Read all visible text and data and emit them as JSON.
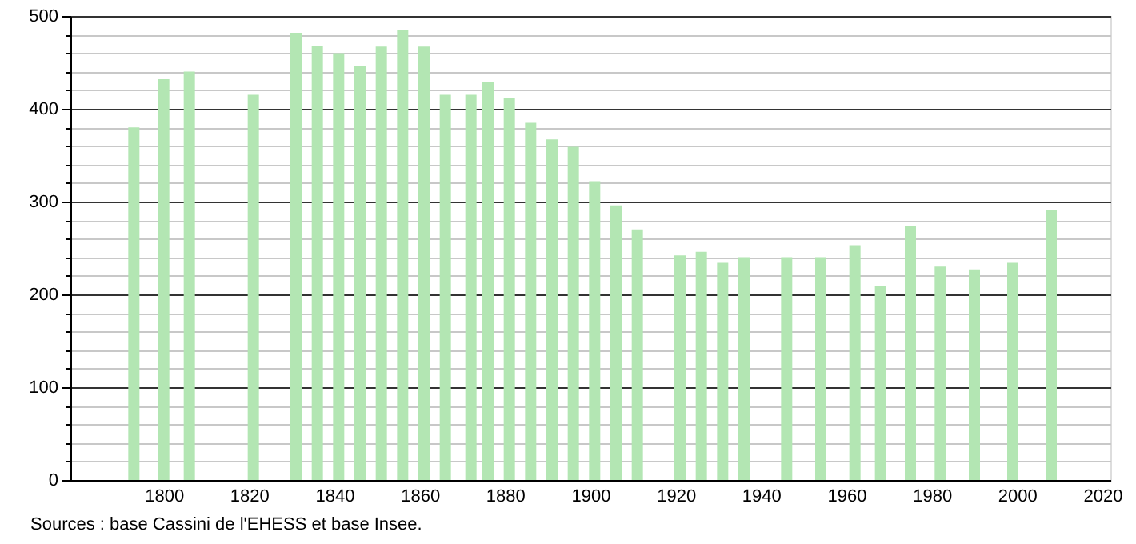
{
  "chart_data": {
    "type": "bar",
    "x": [
      1793,
      1800,
      1806,
      1821,
      1831,
      1836,
      1841,
      1846,
      1851,
      1856,
      1861,
      1866,
      1872,
      1876,
      1881,
      1886,
      1891,
      1896,
      1901,
      1906,
      1911,
      1921,
      1926,
      1931,
      1936,
      1946,
      1954,
      1962,
      1968,
      1975,
      1982,
      1990,
      1999,
      2008
    ],
    "values": [
      380,
      432,
      440,
      415,
      482,
      468,
      460,
      446,
      467,
      485,
      467,
      415,
      415,
      429,
      412,
      385,
      367,
      359,
      322,
      296,
      270,
      242,
      246,
      234,
      240,
      240,
      240,
      253,
      209,
      274,
      230,
      227,
      234,
      291
    ],
    "color": "#b3e6b3",
    "xlim": [
      1780,
      2020
    ],
    "xticks": [
      1800,
      1820,
      1840,
      1860,
      1880,
      1900,
      1920,
      1940,
      1960,
      1980,
      2000,
      2020
    ],
    "ylim": [
      0,
      500
    ],
    "yticks": [
      0,
      {
        "value": 20,
        "label": null
      },
      {
        "value": 40,
        "label": null
      },
      {
        "value": 60,
        "label": null
      },
      {
        "value": 80,
        "label": null
      },
      100,
      {
        "value": 120,
        "label": null
      },
      {
        "value": 140,
        "label": null
      },
      {
        "value": 160,
        "label": null
      },
      {
        "value": 180,
        "label": null
      },
      200,
      {
        "value": 220,
        "label": null
      },
      {
        "value": 240,
        "label": null
      },
      {
        "value": 260,
        "label": null
      },
      {
        "value": 280,
        "label": null
      },
      300,
      {
        "value": 320,
        "label": null
      },
      {
        "value": 340,
        "label": null
      },
      {
        "value": 360,
        "label": null
      },
      {
        "value": 380,
        "label": null
      },
      400,
      {
        "value": 420,
        "label": null
      },
      {
        "value": 440,
        "label": null
      },
      {
        "value": 460,
        "label": null
      },
      {
        "value": 480,
        "label": null
      },
      500
    ],
    "grid": "y",
    "annotations": [
      "Sources : base Cassini de l'EHESS et base Insee."
    ]
  }
}
